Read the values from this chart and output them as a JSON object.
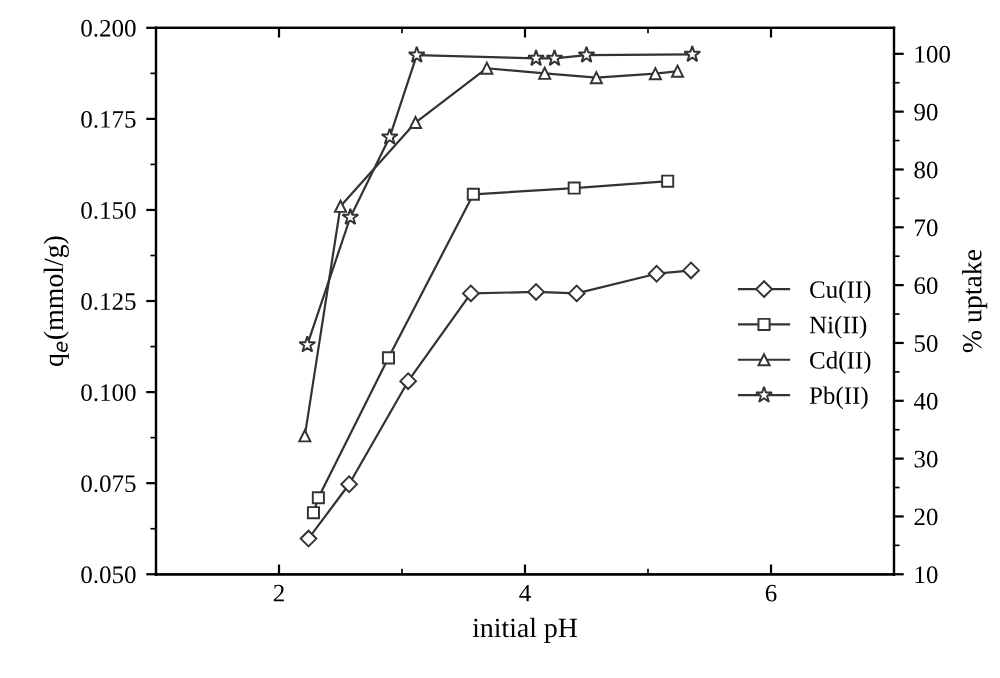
{
  "chart_data": {
    "type": "line",
    "xlabel": "initial pH",
    "ylabel": "q$_{e}$(mmol/g)",
    "y2label": "% uptake",
    "xlim": [
      1,
      7
    ],
    "xticks": [
      2,
      4,
      6
    ],
    "ylim": [
      0.05,
      0.2
    ],
    "yticks": [
      {
        "value": 0.05,
        "label": "0.050"
      },
      0.075,
      {
        "value": 0.1,
        "label": "0.100"
      },
      0.125,
      {
        "value": 0.15,
        "label": "0.150"
      },
      0.175,
      {
        "value": 0.2,
        "label": "0.200"
      }
    ],
    "y2lim": [
      10,
      104.5
    ],
    "y2ticks": [
      10,
      20,
      30,
      40,
      50,
      60,
      70,
      80,
      90,
      100
    ],
    "legend": "right",
    "grid": false,
    "line_style": "solid",
    "series": [
      {
        "name": "Cu(II)",
        "color": "#333333",
        "marker": "diamond",
        "x": [
          2.24,
          2.57,
          3.05,
          3.56,
          4.09,
          4.42,
          5.07,
          5.35
        ],
        "values": [
          0.0598,
          0.0747,
          0.103,
          0.1271,
          0.1275,
          0.1271,
          0.1325,
          0.1334
        ]
      },
      {
        "name": "Ni(II)",
        "color": "#333333",
        "marker": "square",
        "x": [
          2.28,
          2.32,
          2.89,
          3.58,
          4.4,
          5.16
        ],
        "values": [
          0.0669,
          0.071,
          0.1094,
          0.1543,
          0.156,
          0.1579
        ]
      },
      {
        "name": "Cd(II)",
        "color": "#333333",
        "marker": "triangle",
        "x": [
          2.21,
          2.5,
          3.11,
          3.69,
          4.16,
          4.58,
          5.06,
          5.24
        ],
        "values": [
          0.088,
          0.151,
          0.174,
          0.1889,
          0.1875,
          0.1863,
          0.1874,
          0.1881
        ]
      },
      {
        "name": "Pb(II)",
        "color": "#333333",
        "marker": "star",
        "x": [
          2.23,
          2.58,
          2.9,
          3.12,
          4.09,
          4.24,
          4.5,
          5.36
        ],
        "values": [
          0.113,
          0.148,
          0.17,
          0.1925,
          0.1916,
          0.1916,
          0.1925,
          0.1927
        ]
      }
    ]
  }
}
